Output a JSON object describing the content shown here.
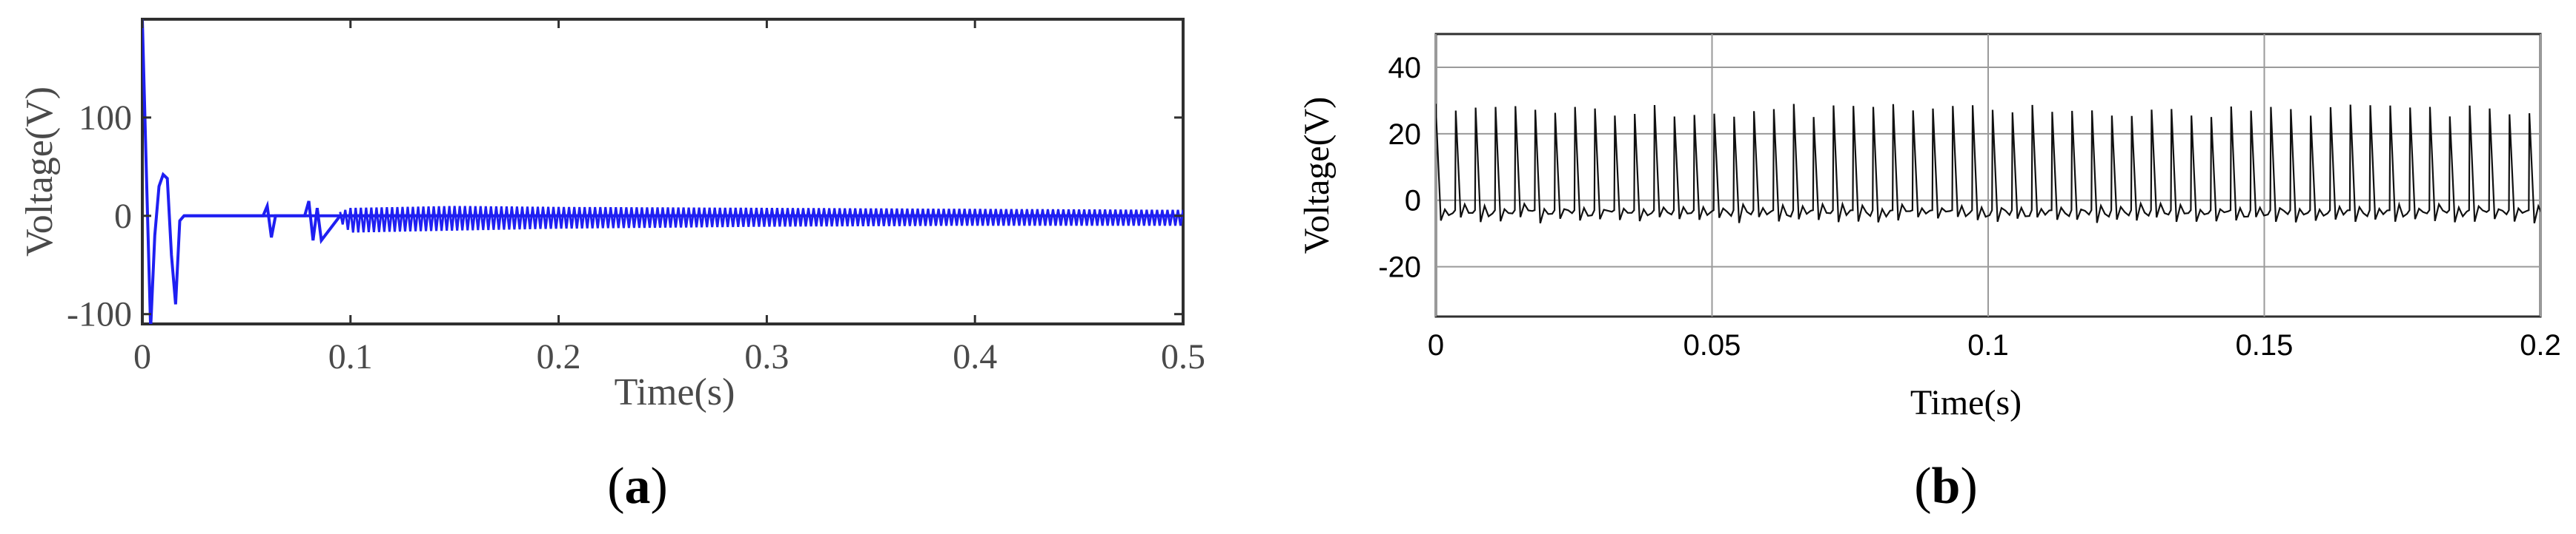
{
  "chart_data": [
    {
      "panel": "(a)",
      "caption_letter": "a",
      "type": "line",
      "xlabel": "Time(s)",
      "ylabel": "Voltage(V)",
      "xlim": [
        0,
        0.5
      ],
      "ylim": [
        -110,
        200
      ],
      "xticks": [
        "0",
        "0.1",
        "0.2",
        "0.3",
        "0.4",
        "0.5"
      ],
      "yticks": [
        "-100",
        "0",
        "100"
      ],
      "grid": false,
      "series_color": "#1f1ff2",
      "series": [
        {
          "style": "oscillating",
          "x": [
            0,
            0.002,
            0.004,
            0.006,
            0.008,
            0.01,
            0.012,
            0.014,
            0.016,
            0.018,
            0.02,
            0.058,
            0.06,
            0.062,
            0.064,
            0.078,
            0.08,
            0.082,
            0.084,
            0.086,
            0.095,
            0.1,
            0.15,
            0.2,
            0.3,
            0.4,
            0.5
          ],
          "y": [
            200,
            40,
            -115,
            -20,
            30,
            42,
            38,
            -40,
            -90,
            -5,
            0,
            0,
            10,
            -22,
            0,
            0,
            15,
            -25,
            8,
            -25,
            0,
            0,
            0,
            0,
            0,
            0,
            0
          ],
          "envelope_upper": [
            0,
            0,
            0,
            0,
            0,
            0,
            0,
            0,
            0,
            0,
            0,
            0,
            0,
            0,
            0,
            0,
            0,
            0,
            0,
            0,
            4,
            8,
            10,
            9,
            8,
            7,
            6
          ],
          "envelope_lower": [
            0,
            0,
            0,
            0,
            0,
            0,
            0,
            0,
            0,
            0,
            0,
            0,
            0,
            0,
            0,
            0,
            0,
            0,
            0,
            0,
            -6,
            -17,
            -15,
            -13,
            -11,
            -10,
            -10
          ]
        }
      ]
    },
    {
      "panel": "(b)",
      "caption_letter": "b",
      "type": "line",
      "xlabel": "Time(s)",
      "ylabel": "Voltage(V)",
      "xlim": [
        0,
        0.2
      ],
      "ylim": [
        -35,
        50
      ],
      "xticks": [
        "0",
        "0.05",
        "0.1",
        "0.15",
        "0.2"
      ],
      "yticks": [
        "-20",
        "0",
        "20",
        "40"
      ],
      "grid": true,
      "series_color": "#111111",
      "series": [
        {
          "style": "pulse_train",
          "pulse_period": 0.0036,
          "peak": 29,
          "trough": -5,
          "baseline": -3
        }
      ]
    }
  ]
}
